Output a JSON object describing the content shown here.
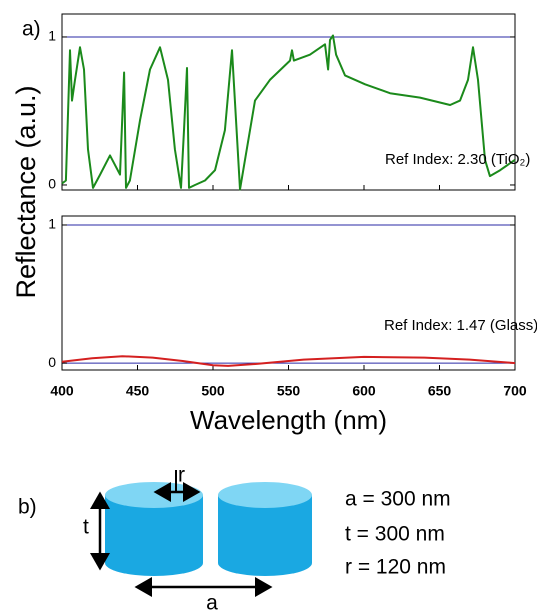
{
  "chart_data": [
    {
      "type": "line",
      "panel_label": "a)",
      "ylabel": "Reflectance (a.u.)",
      "annotation": "Ref Index: 2.30 (TiO₂)",
      "x": [
        400,
        402.6,
        405.3,
        406.6,
        408.6,
        411.9,
        414.6,
        417.2,
        420.5,
        425.2,
        431.8,
        438.4,
        441.1,
        442.4,
        445.0,
        451.7,
        458.3,
        464.9,
        470.2,
        474.8,
        478.8,
        480.8,
        482.8,
        484.1,
        488.1,
        494.7,
        501.3,
        507.9,
        512.6,
        515.2,
        517.9,
        521.2,
        527.8,
        537.7,
        551.0,
        552.3,
        553.6,
        564.2,
        574.2,
        576.2,
        577.5,
        579.5,
        581.5,
        587.4,
        600.7,
        617.2,
        637.1,
        657.0,
        663.6,
        668.9,
        672.2,
        675.5,
        680.1,
        683.4,
        690.1,
        700
      ],
      "values": [
        0.01,
        0.03,
        0.91,
        0.57,
        0.71,
        0.93,
        0.78,
        0.24,
        -0.02,
        0.07,
        0.2,
        0.07,
        0.76,
        -0.02,
        0.03,
        0.44,
        0.78,
        0.93,
        0.71,
        0.24,
        -0.02,
        0.37,
        0.79,
        -0.02,
        0.0,
        0.03,
        0.1,
        0.37,
        0.91,
        0.44,
        -0.03,
        0.17,
        0.57,
        0.71,
        0.84,
        0.91,
        0.84,
        0.88,
        0.95,
        0.78,
        0.98,
        1.01,
        0.88,
        0.74,
        0.68,
        0.62,
        0.59,
        0.54,
        0.57,
        0.71,
        0.93,
        0.71,
        0.17,
        0.06,
        0.1,
        0.17
      ],
      "color": "#1b8a1b",
      "xlim": [
        400,
        700
      ],
      "xticks": [
        400,
        450,
        500,
        550,
        600,
        650,
        700
      ],
      "show_xtick_labels": false,
      "ylim": [
        -0.034,
        1.155
      ],
      "yticks": [
        0,
        1
      ],
      "hlines": [
        1
      ],
      "hline_color": "#2a2aa6"
    },
    {
      "type": "line",
      "xlabel": "Wavelength (nm)",
      "annotation": "Ref Index: 1.47 (Glass)",
      "x": [
        400,
        420,
        440,
        460,
        480,
        500,
        510,
        530,
        560,
        600,
        640,
        670,
        700
      ],
      "values": [
        0.01,
        0.035,
        0.05,
        0.04,
        0.015,
        -0.015,
        -0.02,
        -0.005,
        0.025,
        0.045,
        0.04,
        0.025,
        0.0
      ],
      "color": "#d42020",
      "xlim": [
        400,
        700
      ],
      "xticks": [
        400,
        450,
        500,
        550,
        600,
        650,
        700
      ],
      "show_xtick_labels": true,
      "ylim": [
        -0.05,
        1.065
      ],
      "yticks": [
        0,
        1
      ],
      "hlines": [
        0,
        1
      ],
      "hline_color": "#2a2aa6"
    }
  ],
  "diagram": {
    "label": "b)",
    "r_label": "r",
    "t_label": "t",
    "a_label": "a",
    "params": [
      "a = 300 nm",
      "t = 300 nm",
      "r  = 120 nm"
    ]
  }
}
